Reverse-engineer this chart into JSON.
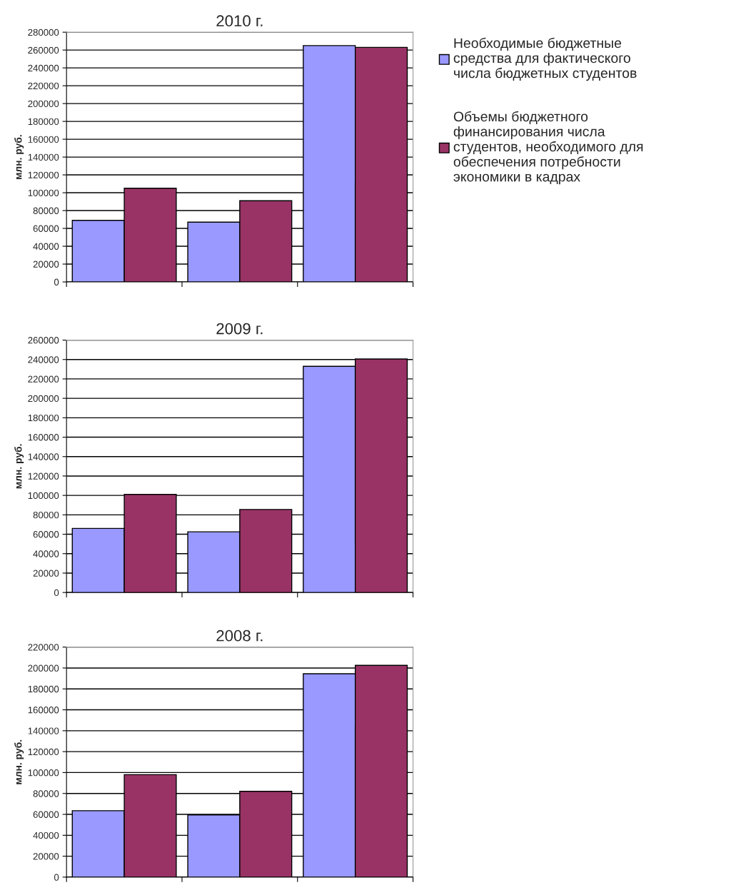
{
  "chart_data": [
    {
      "type": "bar",
      "title": "2010 г.",
      "ylabel": "млн. руб.",
      "categories": [
        null,
        null,
        null
      ],
      "ylim": [
        0,
        280000
      ],
      "yticks": [
        0,
        20000,
        40000,
        60000,
        80000,
        100000,
        120000,
        140000,
        160000,
        180000,
        200000,
        220000,
        240000,
        260000,
        280000
      ],
      "grid": "y",
      "legend": "right",
      "series": [
        {
          "name": "Необходимые бюджетные средства для фактического числа бюджетных студентов",
          "color": "#9999ff",
          "values": [
            69000,
            67000,
            265000
          ]
        },
        {
          "name": "Объемы бюджетного финансирования числа студентов, необходимого для обеспечения потребности экономики в кадрах",
          "color": "#993366",
          "values": [
            105000,
            91000,
            263000
          ]
        }
      ]
    },
    {
      "type": "bar",
      "title": "2009 г.",
      "ylabel": "млн. руб.",
      "categories": [
        null,
        null,
        null
      ],
      "ylim": [
        0,
        260000
      ],
      "yticks": [
        0,
        20000,
        40000,
        60000,
        80000,
        100000,
        120000,
        140000,
        160000,
        180000,
        200000,
        220000,
        240000,
        260000
      ],
      "grid": "y",
      "series": [
        {
          "color": "#9999ff",
          "values": [
            66000,
            62500,
            233000
          ]
        },
        {
          "color": "#993366",
          "values": [
            101000,
            85500,
            240500
          ]
        }
      ]
    },
    {
      "type": "bar",
      "title": "2008 г.",
      "ylabel": "млн. руб.",
      "categories": [
        null,
        null,
        null
      ],
      "ylim": [
        0,
        220000
      ],
      "yticks": [
        0,
        20000,
        40000,
        60000,
        80000,
        100000,
        120000,
        140000,
        160000,
        180000,
        200000,
        220000
      ],
      "grid": "y",
      "series": [
        {
          "color": "#9999ff",
          "values": [
            63500,
            59500,
            194500
          ]
        },
        {
          "color": "#993366",
          "values": [
            98000,
            82000,
            202500
          ]
        }
      ]
    }
  ]
}
